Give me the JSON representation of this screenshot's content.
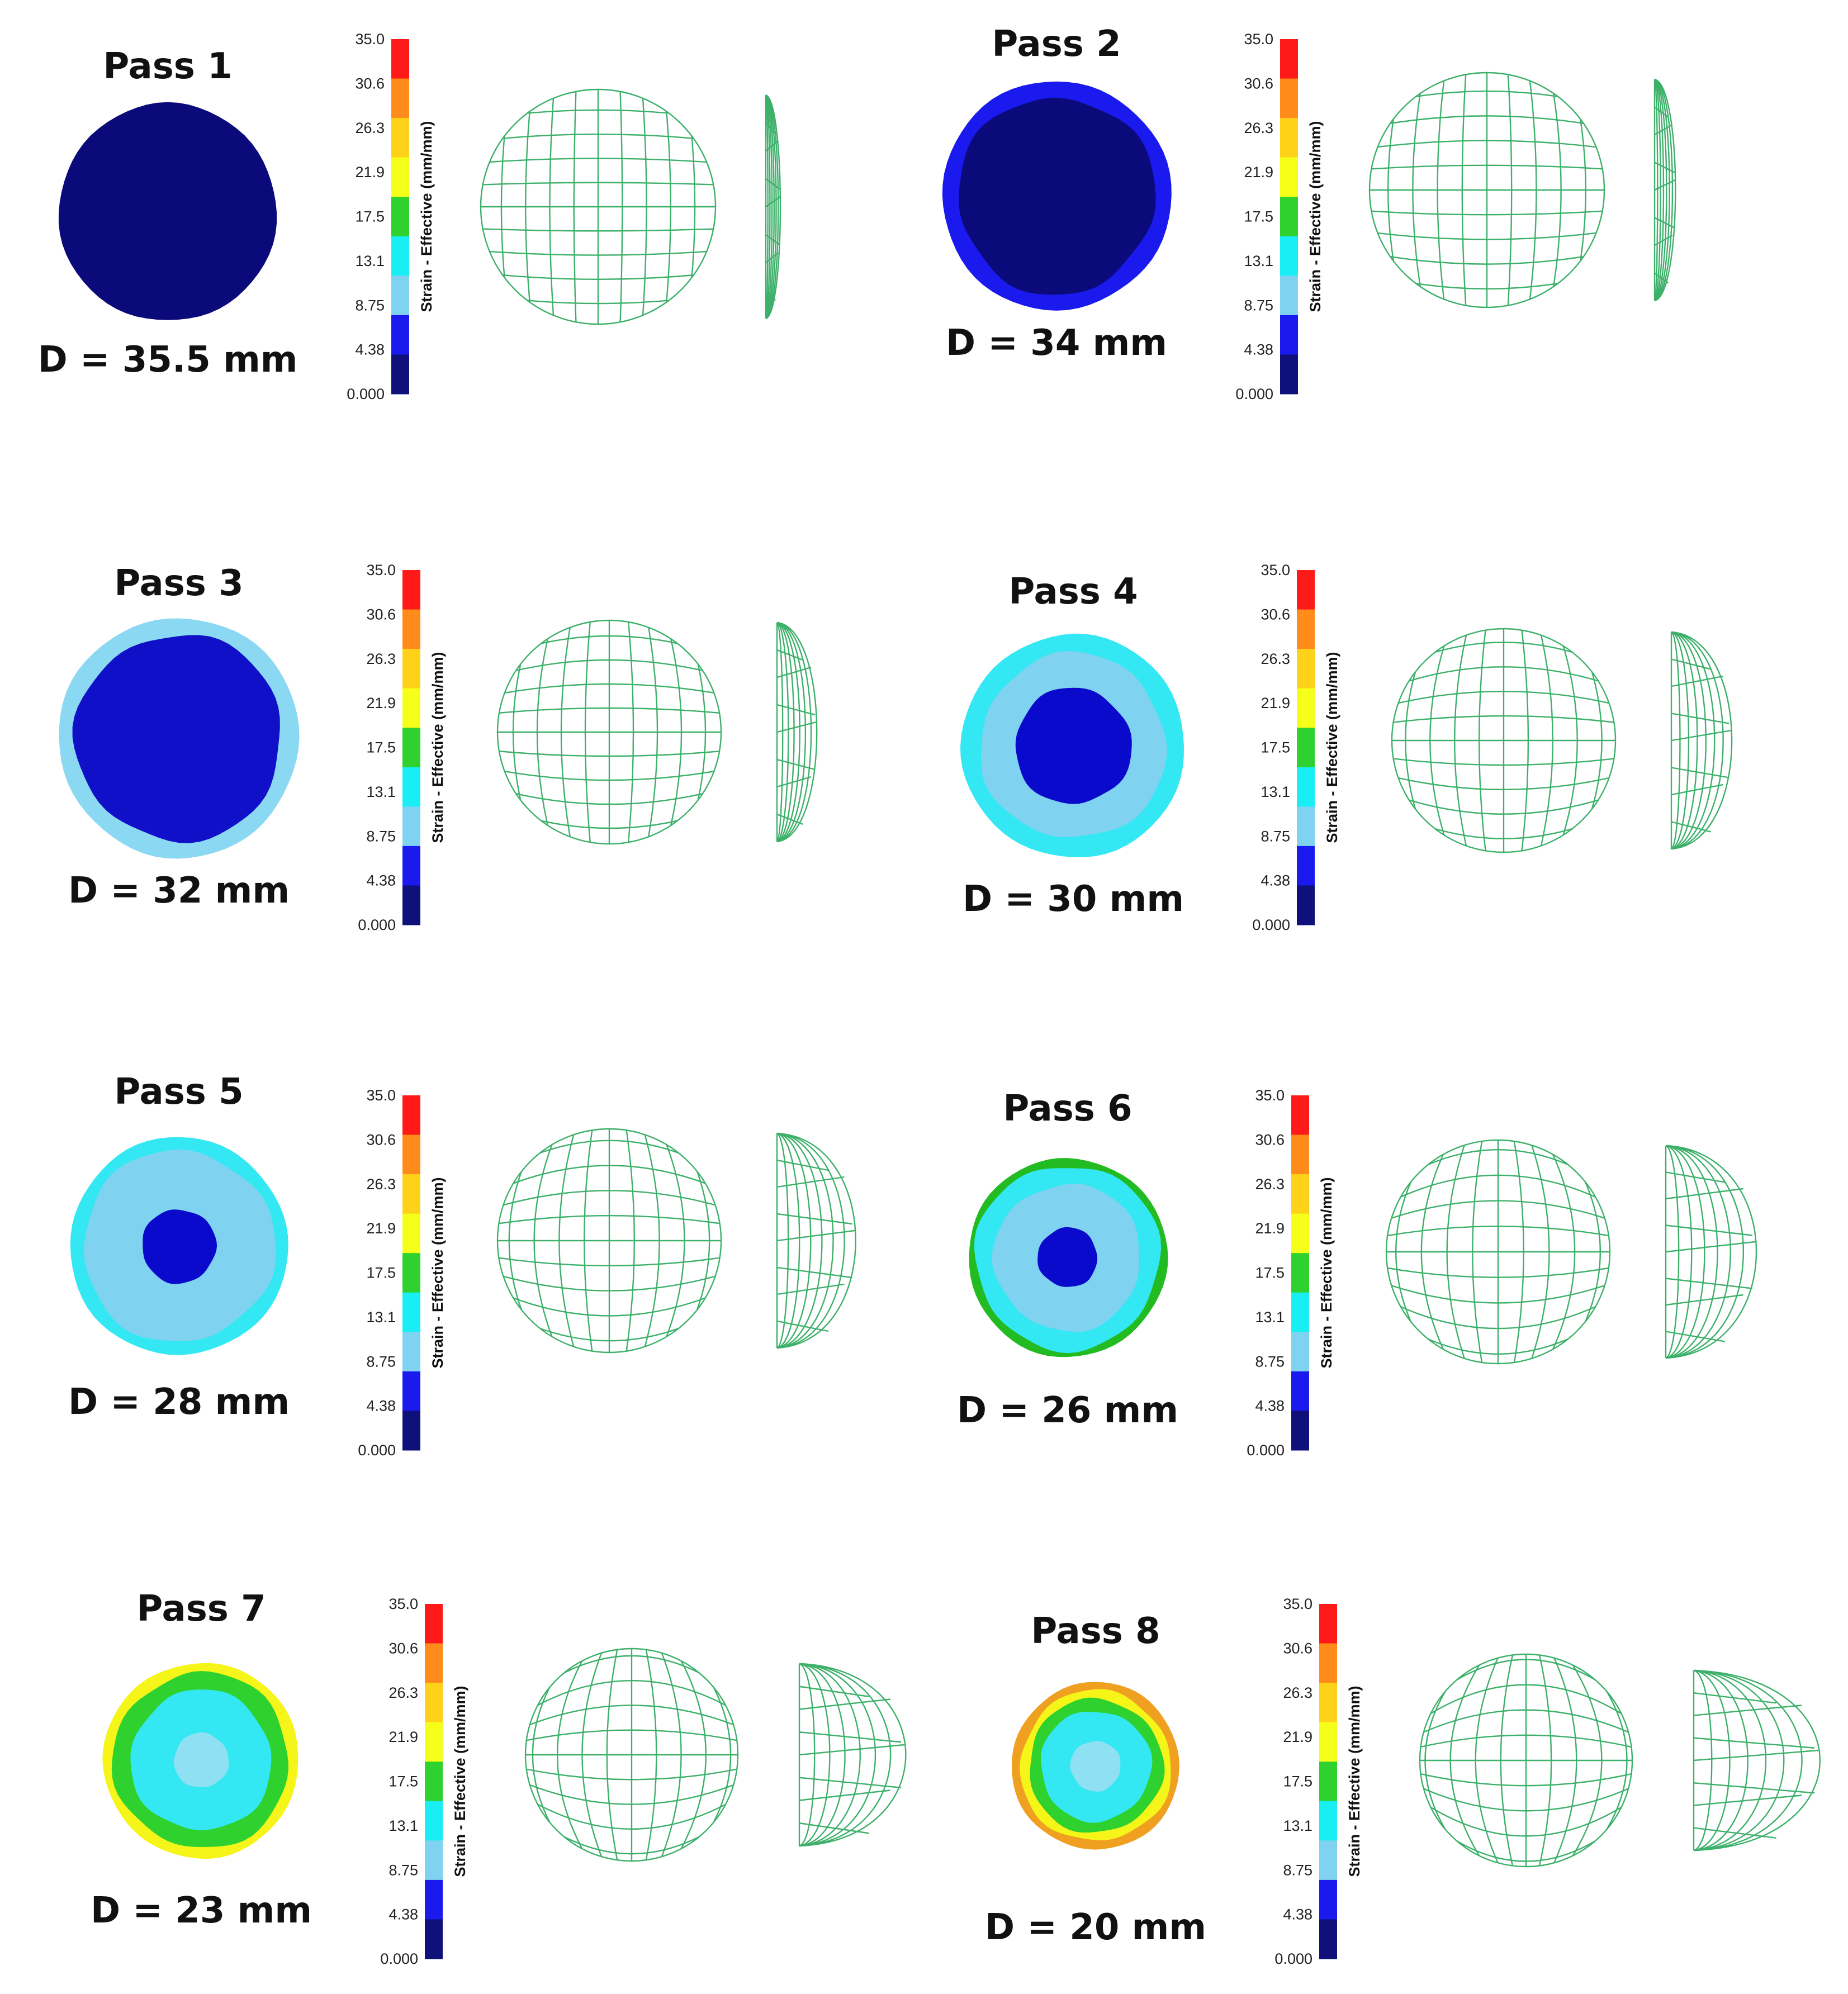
{
  "scale": {
    "ticks": [
      "35.0",
      "30.6",
      "26.3",
      "21.9",
      "17.5",
      "13.1",
      "8.75",
      "4.38",
      "0.000"
    ],
    "label": "Strain - Effective (mm/mm)",
    "colors": [
      "#ff1a1a",
      "#ff8c1a",
      "#ffd21a",
      "#f5ff1a",
      "#2ed12e",
      "#1aeef5",
      "#7fd2f0",
      "#1a1aee",
      "#10107a"
    ]
  },
  "passes": [
    {
      "title": "Pass 1",
      "diameter": "D = 35.5 mm",
      "diameter_mm": 35.5,
      "bands": [
        [
          "#0a0a7a",
          1.0
        ]
      ],
      "side_depth": 0.04
    },
    {
      "title": "Pass 2",
      "diameter": "D = 34 mm",
      "diameter_mm": 34,
      "bands": [
        [
          "#1a1aee",
          1.0
        ],
        [
          "#0a0a7a",
          0.86
        ]
      ],
      "side_depth": 0.12
    },
    {
      "title": "Pass 3",
      "diameter": "D = 32 mm",
      "diameter_mm": 32,
      "bands": [
        [
          "#8ad8f2",
          1.0
        ],
        [
          "#1010c8",
          0.86
        ]
      ],
      "side_depth": 0.36
    },
    {
      "title": "Pass 4",
      "diameter": "D = 30 mm",
      "diameter_mm": 30,
      "bands": [
        [
          "#33e8f2",
          1.0
        ],
        [
          "#7fd2f0",
          0.83
        ],
        [
          "#0a0acc",
          0.52
        ]
      ],
      "side_depth": 0.62
    },
    {
      "title": "Pass 5",
      "diameter": "D = 28 mm",
      "diameter_mm": 28,
      "bands": [
        [
          "#33e8f2",
          1.0
        ],
        [
          "#7fd2f0",
          0.88
        ],
        [
          "#0a0acc",
          0.34
        ]
      ],
      "side_depth": 0.85
    },
    {
      "title": "Pass 6",
      "diameter": "D = 26 mm",
      "diameter_mm": 26,
      "bands": [
        [
          "#22bb22",
          1.0
        ],
        [
          "#33e8f2",
          0.93
        ],
        [
          "#7fd2f0",
          0.74
        ],
        [
          "#0a0acc",
          0.3
        ]
      ],
      "side_depth": 1.0
    },
    {
      "title": "Pass 7",
      "diameter": "D = 23 mm",
      "diameter_mm": 23,
      "bands": [
        [
          "#f5f51a",
          1.0
        ],
        [
          "#2ed12e",
          0.9
        ],
        [
          "#33e8f2",
          0.72
        ],
        [
          "#8fe0f2",
          0.28
        ]
      ],
      "side_depth": 1.2
    },
    {
      "title": "Pass 8",
      "diameter": "D = 20 mm",
      "diameter_mm": 20,
      "bands": [
        [
          "#f0a020",
          1.0
        ],
        [
          "#f5f51a",
          0.9
        ],
        [
          "#2ed12e",
          0.8
        ],
        [
          "#33e8f2",
          0.66
        ],
        [
          "#8fe0f2",
          0.3
        ]
      ],
      "side_depth": 1.45
    }
  ],
  "mesh_color": "#3db06a"
}
